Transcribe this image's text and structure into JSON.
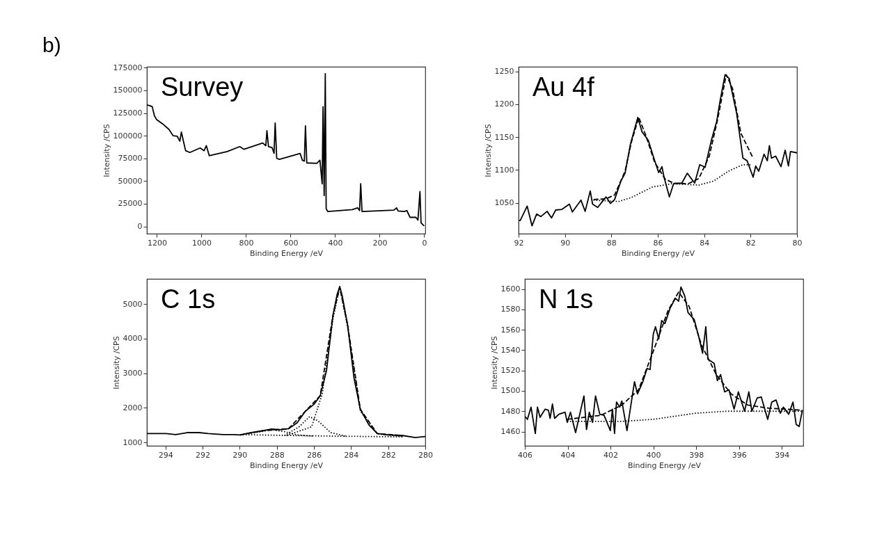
{
  "chart_data": [
    {
      "type": "line",
      "title": "Survey",
      "xlabel": "Binding Energy /eV",
      "ylabel": "Intensity /CPS",
      "annotations": [
        "b)"
      ],
      "xlim": [
        1245,
        -5
      ],
      "ylim": [
        -8000,
        176000
      ],
      "xticks": [
        1200,
        1000,
        800,
        600,
        400,
        200,
        0
      ],
      "yticks": [
        0,
        25000,
        50000,
        75000,
        100000,
        125000,
        150000,
        175000
      ],
      "series": [
        {
          "color": "#000000",
          "line_style": "solid",
          "x": [
            1245,
            1230,
            1221,
            1211,
            1202,
            1174,
            1146,
            1127,
            1109,
            1097,
            1090,
            1080,
            1071,
            1052,
            1006,
            988,
            978,
            965,
            884,
            828,
            809,
            725,
            711,
            706,
            699,
            683,
            674,
            669,
            662,
            650,
            557,
            547,
            538,
            533,
            527,
            482,
            468,
            458,
            454,
            449,
            444,
            440,
            433,
            323,
            299,
            290,
            285,
            279,
            136,
            124,
            117,
            89,
            78,
            63,
            37,
            28,
            19,
            14,
            0
          ],
          "values": [
            134000,
            133000,
            132000,
            122000,
            118000,
            113000,
            107000,
            100000,
            99500,
            94000,
            104000,
            93000,
            83500,
            81500,
            86500,
            83500,
            89000,
            78000,
            82500,
            88000,
            85000,
            92000,
            89000,
            105500,
            88000,
            87000,
            80500,
            114000,
            75000,
            74000,
            80500,
            73000,
            72000,
            111000,
            70000,
            69500,
            73000,
            47000,
            132000,
            34000,
            168500,
            19500,
            16500,
            18500,
            20500,
            17500,
            47000,
            16500,
            18000,
            20500,
            17000,
            16500,
            17500,
            10000,
            10000,
            7000,
            38500,
            4000,
            500
          ]
        }
      ]
    },
    {
      "type": "line",
      "title": "Au 4f",
      "xlabel": "Binding Energy /eV",
      "ylabel": "Intensity /CPS",
      "xlim": [
        92,
        80
      ],
      "ylim": [
        1003,
        1257
      ],
      "xticks": [
        92,
        90,
        88,
        86,
        84,
        82,
        80
      ],
      "yticks": [
        1050,
        1100,
        1150,
        1200,
        1250
      ],
      "series": [
        {
          "color": "#000000",
          "line_style": "solid",
          "x": [
            92,
            91.93,
            91.63,
            91.42,
            91.22,
            91.04,
            90.77,
            90.58,
            90.4,
            90.13,
            89.81,
            89.68,
            89.31,
            89.13,
            88.91,
            88.81,
            88.59,
            88.23,
            88.04,
            87.86,
            87.59,
            87.41,
            87.18,
            86.86,
            86.68,
            86.41,
            86.14,
            85.96,
            85.82,
            85.73,
            85.5,
            85.32,
            84.96,
            84.73,
            84.41,
            84.19,
            83.96,
            83.69,
            83.46,
            83.32,
            83.1,
            82.92,
            82.6,
            82.33,
            82.15,
            81.89,
            81.78,
            81.65,
            81.42,
            81.28,
            81.19,
            81.1,
            80.92,
            80.69,
            80.51,
            80.37,
            80.28,
            80
          ],
          "values": [
            1023,
            1023,
            1045,
            1015,
            1033,
            1029,
            1037,
            1027,
            1039,
            1040,
            1048,
            1036,
            1054,
            1037,
            1068,
            1048,
            1043,
            1059,
            1049,
            1055,
            1083,
            1095,
            1139,
            1180,
            1158,
            1145,
            1115,
            1096,
            1105,
            1089,
            1059,
            1079,
            1080,
            1095,
            1080,
            1108,
            1104,
            1145,
            1174,
            1204,
            1245,
            1239,
            1186,
            1118,
            1114,
            1089,
            1106,
            1098,
            1124,
            1114,
            1137,
            1118,
            1121,
            1105,
            1130,
            1106,
            1128,
            1126
          ]
        },
        {
          "color": "#000000",
          "line_style": "dashed",
          "x": [
            88.77,
            88.23,
            87.86,
            87.41,
            87.14,
            86.82,
            86.5,
            86.14,
            85.68,
            85.32,
            84.69,
            84.23,
            83.78,
            83.42,
            83.05,
            82.78,
            82.42,
            81.92
          ],
          "values": [
            1055,
            1056,
            1062,
            1098,
            1142,
            1180,
            1151,
            1112,
            1086,
            1080,
            1079,
            1087,
            1121,
            1177,
            1245,
            1224,
            1156,
            1120
          ]
        },
        {
          "color": "#000000",
          "line_style": "dotted",
          "x": [
            88.77,
            87.68,
            87.14,
            86.23,
            85.41,
            84.23,
            83.6,
            82.96,
            82.33,
            81.96
          ],
          "values": [
            1054,
            1052,
            1058,
            1074,
            1079,
            1077,
            1083,
            1098,
            1108,
            1108
          ]
        }
      ]
    },
    {
      "type": "line",
      "title": "C 1s",
      "xlabel": "Binding Energy /eV",
      "ylabel": "Intensity /CPS",
      "xlim": [
        295,
        280
      ],
      "ylim": [
        900,
        5730
      ],
      "xticks": [
        294,
        292,
        290,
        288,
        286,
        284,
        282,
        280
      ],
      "yticks": [
        1000,
        2000,
        3000,
        4000,
        5000
      ],
      "series": [
        {
          "color": "#000000",
          "line_style": "solid",
          "x": [
            295,
            294.53,
            293.97,
            293.45,
            292.83,
            292.2,
            291.69,
            290.89,
            290.33,
            289.98,
            289.42,
            288.73,
            288.28,
            287.82,
            287.37,
            286.91,
            286.46,
            286.0,
            285.66,
            285.32,
            284.98,
            284.75,
            284.61,
            284.47,
            284.18,
            283.84,
            283.5,
            283.04,
            282.59,
            282.02,
            281.22,
            280.54,
            280
          ],
          "values": [
            1255,
            1254,
            1254,
            1225,
            1282,
            1282,
            1254,
            1225,
            1225,
            1214,
            1282,
            1338,
            1383,
            1366,
            1394,
            1563,
            1901,
            2099,
            2352,
            3085,
            4662,
            5282,
            5507,
            5225,
            4380,
            2859,
            1958,
            1507,
            1254,
            1214,
            1197,
            1141,
            1169
          ]
        },
        {
          "color": "#000000",
          "line_style": "dashed",
          "x": [
            289.98,
            288.73,
            287.37,
            286.46,
            285.66,
            284.98,
            284.61,
            284.18,
            283.5,
            282.59,
            281.22
          ],
          "values": [
            1214,
            1338,
            1394,
            1901,
            2352,
            4662,
            5479,
            4380,
            1958,
            1254,
            1197
          ]
        },
        {
          "color": "#000000",
          "line_style": "dotted",
          "x": [
            289.98,
            287.14,
            284.86,
            281.22
          ],
          "values": [
            1225,
            1197,
            1180,
            1158
          ]
        },
        {
          "color": "#000000",
          "line_style": "dotted",
          "x": [
            287.48,
            286.12,
            285.55,
            284.98,
            284.61,
            284.18,
            283.5,
            282.59,
            281.22
          ],
          "values": [
            1197,
            1451,
            2408,
            4549,
            5507,
            4324,
            1901,
            1254,
            1169
          ]
        },
        {
          "color": "#000000",
          "line_style": "dotted",
          "x": [
            287.59,
            286.8,
            286.23,
            285.78,
            285.09,
            284.3
          ],
          "values": [
            1197,
            1451,
            1744,
            1620,
            1282,
            1180
          ]
        },
        {
          "color": "#000000",
          "line_style": "dotted",
          "x": [
            289.98,
            288.85,
            288.28,
            287.59,
            286.91,
            286.0
          ],
          "values": [
            1214,
            1310,
            1366,
            1310,
            1214,
            1180
          ]
        }
      ]
    },
    {
      "type": "line",
      "title": "N 1s",
      "xlabel": "Binding Energy /eV",
      "ylabel": "Intensity /CPS",
      "xlim": [
        406,
        393
      ],
      "ylim": [
        1446,
        1610
      ],
      "xticks": [
        406,
        404,
        402,
        400,
        398,
        396,
        394
      ],
      "yticks": [
        1460,
        1480,
        1500,
        1520,
        1540,
        1560,
        1580,
        1600
      ],
      "series": [
        {
          "color": "#000000",
          "line_style": "solid",
          "x": [
            406,
            405.88,
            405.71,
            405.51,
            405.41,
            405.29,
            405.05,
            404.9,
            404.82,
            404.71,
            404.61,
            404.41,
            404.12,
            404.02,
            403.87,
            403.63,
            403.24,
            403.12,
            402.99,
            402.84,
            402.7,
            402.5,
            402.3,
            402.01,
            401.91,
            401.81,
            401.72,
            401.57,
            401.47,
            401.23,
            400.88,
            400.74,
            400.49,
            400.29,
            400.15,
            400.0,
            399.9,
            399.75,
            399.61,
            399.46,
            399.22,
            398.97,
            398.82,
            398.71,
            398.53,
            398.38,
            398.09,
            397.89,
            397.7,
            397.55,
            397.45,
            397.16,
            397.01,
            396.86,
            396.67,
            396.47,
            396.23,
            396.03,
            395.74,
            395.54,
            395.4,
            395.15,
            394.96,
            394.66,
            394.47,
            394.27,
            394.07,
            393.93,
            393.68,
            393.48,
            393.33,
            393.19,
            393.04
          ],
          "values": [
            1475,
            1472,
            1484,
            1458,
            1484,
            1474,
            1482,
            1481,
            1473,
            1487,
            1473,
            1477,
            1479,
            1469,
            1479,
            1459,
            1495,
            1462,
            1479,
            1469,
            1495,
            1477,
            1476,
            1461,
            1482,
            1458,
            1489,
            1484,
            1490,
            1461,
            1509,
            1497,
            1509,
            1522,
            1521,
            1556,
            1563,
            1551,
            1569,
            1566,
            1581,
            1591,
            1588,
            1602,
            1593,
            1577,
            1570,
            1554,
            1537,
            1563,
            1531,
            1527,
            1510,
            1516,
            1499,
            1501,
            1482,
            1499,
            1480,
            1499,
            1480,
            1493,
            1494,
            1472,
            1489,
            1491,
            1478,
            1484,
            1477,
            1489,
            1467,
            1465,
            1481
          ]
        },
        {
          "color": "#000000",
          "line_style": "dashed",
          "x": [
            404.02,
            402.45,
            401.47,
            400.69,
            400.0,
            399.31,
            398.82,
            398.33,
            397.75,
            397.06,
            396.37,
            395.59,
            394.61,
            393.04
          ],
          "values": [
            1472,
            1476,
            1486,
            1501,
            1539,
            1579,
            1597,
            1583,
            1545,
            1516,
            1497,
            1486,
            1483,
            1481
          ]
        },
        {
          "color": "#000000",
          "line_style": "dotted",
          "x": [
            404.02,
            401.47,
            400.0,
            399.02,
            398.04,
            396.57,
            393.04
          ],
          "values": [
            1470,
            1470,
            1472,
            1475,
            1478,
            1480,
            1480
          ]
        }
      ]
    }
  ]
}
